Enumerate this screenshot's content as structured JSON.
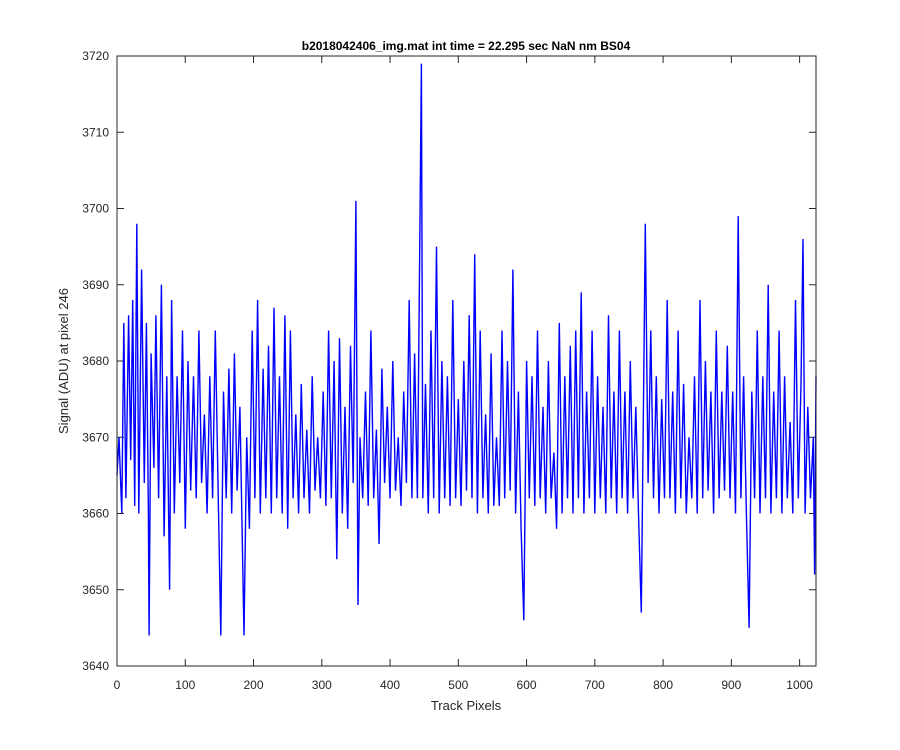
{
  "chart_data": {
    "type": "line",
    "title": "b2018042406_img.mat int time = 22.295 sec  NaN nm BS04",
    "xlabel": "Track Pixels",
    "ylabel": "Signal (ADU) at pixel 246",
    "xlim": [
      0,
      1024
    ],
    "ylim": [
      3640,
      3720
    ],
    "xticks": [
      0,
      100,
      200,
      300,
      400,
      500,
      600,
      700,
      800,
      900,
      1000
    ],
    "yticks": [
      3640,
      3650,
      3660,
      3670,
      3680,
      3690,
      3700,
      3710,
      3720
    ],
    "grid": false,
    "legend": "none",
    "line_color": "#0000ff",
    "series": [
      {
        "approximate_points": [
          [
            0,
            3665
          ],
          [
            3,
            3670
          ],
          [
            7,
            3660
          ],
          [
            10,
            3685
          ],
          [
            13,
            3662
          ],
          [
            17,
            3686
          ],
          [
            20,
            3667
          ],
          [
            23,
            3688
          ],
          [
            26,
            3661
          ],
          [
            29,
            3698
          ],
          [
            32,
            3660
          ],
          [
            36,
            3692
          ],
          [
            40,
            3664
          ],
          [
            43,
            3685
          ],
          [
            46,
            3660
          ],
          [
            47,
            3644
          ],
          [
            50,
            3681
          ],
          [
            54,
            3666
          ],
          [
            57,
            3686
          ],
          [
            61,
            3662
          ],
          [
            65,
            3690
          ],
          [
            69,
            3657
          ],
          [
            73,
            3678
          ],
          [
            77,
            3650
          ],
          [
            80,
            3688
          ],
          [
            84,
            3660
          ],
          [
            88,
            3678
          ],
          [
            92,
            3664
          ],
          [
            96,
            3684
          ],
          [
            100,
            3658
          ],
          [
            104,
            3680
          ],
          [
            108,
            3663
          ],
          [
            112,
            3678
          ],
          [
            116,
            3662
          ],
          [
            120,
            3684
          ],
          [
            124,
            3664
          ],
          [
            128,
            3673
          ],
          [
            132,
            3660
          ],
          [
            136,
            3678
          ],
          [
            140,
            3662
          ],
          [
            144,
            3684
          ],
          [
            148,
            3664
          ],
          [
            152,
            3644
          ],
          [
            156,
            3676
          ],
          [
            160,
            3662
          ],
          [
            164,
            3679
          ],
          [
            168,
            3660
          ],
          [
            172,
            3681
          ],
          [
            176,
            3663
          ],
          [
            180,
            3674
          ],
          [
            186,
            3644
          ],
          [
            190,
            3670
          ],
          [
            194,
            3658
          ],
          [
            198,
            3684
          ],
          [
            202,
            3662
          ],
          [
            206,
            3688
          ],
          [
            210,
            3660
          ],
          [
            214,
            3679
          ],
          [
            218,
            3662
          ],
          [
            222,
            3682
          ],
          [
            226,
            3660
          ],
          [
            230,
            3687
          ],
          [
            234,
            3662
          ],
          [
            238,
            3678
          ],
          [
            242,
            3660
          ],
          [
            246,
            3686
          ],
          [
            250,
            3658
          ],
          [
            254,
            3684
          ],
          [
            258,
            3662
          ],
          [
            262,
            3673
          ],
          [
            266,
            3660
          ],
          [
            270,
            3677
          ],
          [
            274,
            3662
          ],
          [
            278,
            3671
          ],
          [
            282,
            3660
          ],
          [
            286,
            3678
          ],
          [
            290,
            3663
          ],
          [
            294,
            3670
          ],
          [
            298,
            3662
          ],
          [
            302,
            3676
          ],
          [
            306,
            3661
          ],
          [
            310,
            3684
          ],
          [
            314,
            3662
          ],
          [
            318,
            3680
          ],
          [
            322,
            3654
          ],
          [
            326,
            3683
          ],
          [
            330,
            3660
          ],
          [
            334,
            3674
          ],
          [
            338,
            3658
          ],
          [
            342,
            3682
          ],
          [
            346,
            3664
          ],
          [
            350,
            3701
          ],
          [
            353,
            3648
          ],
          [
            356,
            3670
          ],
          [
            360,
            3662
          ],
          [
            364,
            3676
          ],
          [
            368,
            3661
          ],
          [
            372,
            3684
          ],
          [
            376,
            3662
          ],
          [
            380,
            3671
          ],
          [
            384,
            3656
          ],
          [
            388,
            3679
          ],
          [
            392,
            3664
          ],
          [
            396,
            3674
          ],
          [
            400,
            3662
          ],
          [
            404,
            3680
          ],
          [
            408,
            3663
          ],
          [
            412,
            3670
          ],
          [
            416,
            3661
          ],
          [
            420,
            3676
          ],
          [
            424,
            3664
          ],
          [
            428,
            3688
          ],
          [
            432,
            3662
          ],
          [
            436,
            3681
          ],
          [
            440,
            3662
          ],
          [
            444,
            3700
          ],
          [
            446,
            3719
          ],
          [
            448,
            3662
          ],
          [
            452,
            3677
          ],
          [
            456,
            3660
          ],
          [
            460,
            3684
          ],
          [
            464,
            3662
          ],
          [
            468,
            3695
          ],
          [
            472,
            3660
          ],
          [
            476,
            3680
          ],
          [
            480,
            3662
          ],
          [
            484,
            3678
          ],
          [
            488,
            3661
          ],
          [
            492,
            3688
          ],
          [
            496,
            3662
          ],
          [
            500,
            3675
          ],
          [
            504,
            3661
          ],
          [
            508,
            3680
          ],
          [
            512,
            3663
          ],
          [
            516,
            3686
          ],
          [
            520,
            3662
          ],
          [
            524,
            3694
          ],
          [
            528,
            3660
          ],
          [
            532,
            3684
          ],
          [
            536,
            3662
          ],
          [
            540,
            3673
          ],
          [
            544,
            3660
          ],
          [
            548,
            3681
          ],
          [
            552,
            3661
          ],
          [
            556,
            3670
          ],
          [
            560,
            3661
          ],
          [
            564,
            3684
          ],
          [
            568,
            3662
          ],
          [
            572,
            3680
          ],
          [
            576,
            3663
          ],
          [
            580,
            3692
          ],
          [
            584,
            3660
          ],
          [
            588,
            3676
          ],
          [
            592,
            3658
          ],
          [
            596,
            3646
          ],
          [
            600,
            3680
          ],
          [
            604,
            3662
          ],
          [
            608,
            3678
          ],
          [
            612,
            3661
          ],
          [
            616,
            3684
          ],
          [
            620,
            3662
          ],
          [
            624,
            3674
          ],
          [
            628,
            3660
          ],
          [
            632,
            3680
          ],
          [
            636,
            3662
          ],
          [
            640,
            3668
          ],
          [
            644,
            3658
          ],
          [
            648,
            3685
          ],
          [
            652,
            3660
          ],
          [
            656,
            3678
          ],
          [
            660,
            3662
          ],
          [
            664,
            3682
          ],
          [
            668,
            3660
          ],
          [
            672,
            3684
          ],
          [
            676,
            3662
          ],
          [
            680,
            3689
          ],
          [
            684,
            3660
          ],
          [
            688,
            3676
          ],
          [
            692,
            3662
          ],
          [
            696,
            3684
          ],
          [
            700,
            3660
          ],
          [
            704,
            3678
          ],
          [
            708,
            3662
          ],
          [
            712,
            3674
          ],
          [
            716,
            3660
          ],
          [
            720,
            3686
          ],
          [
            724,
            3662
          ],
          [
            728,
            3676
          ],
          [
            732,
            3660
          ],
          [
            736,
            3684
          ],
          [
            740,
            3662
          ],
          [
            744,
            3676
          ],
          [
            748,
            3660
          ],
          [
            752,
            3680
          ],
          [
            756,
            3662
          ],
          [
            760,
            3674
          ],
          [
            764,
            3660
          ],
          [
            768,
            3647
          ],
          [
            772,
            3681
          ],
          [
            774,
            3698
          ],
          [
            778,
            3664
          ],
          [
            782,
            3684
          ],
          [
            786,
            3662
          ],
          [
            790,
            3678
          ],
          [
            794,
            3660
          ],
          [
            798,
            3675
          ],
          [
            802,
            3662
          ],
          [
            806,
            3688
          ],
          [
            810,
            3662
          ],
          [
            814,
            3676
          ],
          [
            818,
            3660
          ],
          [
            822,
            3684
          ],
          [
            826,
            3662
          ],
          [
            830,
            3677
          ],
          [
            834,
            3660
          ],
          [
            838,
            3670
          ],
          [
            842,
            3662
          ],
          [
            846,
            3678
          ],
          [
            850,
            3660
          ],
          [
            854,
            3688
          ],
          [
            858,
            3662
          ],
          [
            862,
            3680
          ],
          [
            866,
            3663
          ],
          [
            870,
            3676
          ],
          [
            874,
            3660
          ],
          [
            878,
            3684
          ],
          [
            882,
            3662
          ],
          [
            886,
            3676
          ],
          [
            890,
            3663
          ],
          [
            894,
            3682
          ],
          [
            898,
            3662
          ],
          [
            902,
            3676
          ],
          [
            906,
            3660
          ],
          [
            910,
            3699
          ],
          [
            914,
            3662
          ],
          [
            918,
            3678
          ],
          [
            922,
            3660
          ],
          [
            926,
            3645
          ],
          [
            930,
            3676
          ],
          [
            934,
            3662
          ],
          [
            938,
            3684
          ],
          [
            942,
            3660
          ],
          [
            946,
            3678
          ],
          [
            950,
            3662
          ],
          [
            954,
            3690
          ],
          [
            958,
            3660
          ],
          [
            962,
            3676
          ],
          [
            966,
            3662
          ],
          [
            970,
            3684
          ],
          [
            974,
            3660
          ],
          [
            978,
            3678
          ],
          [
            982,
            3662
          ],
          [
            986,
            3672
          ],
          [
            990,
            3660
          ],
          [
            994,
            3688
          ],
          [
            998,
            3662
          ],
          [
            1002,
            3677
          ],
          [
            1005,
            3696
          ],
          [
            1008,
            3660
          ],
          [
            1012,
            3674
          ],
          [
            1016,
            3662
          ],
          [
            1020,
            3670
          ],
          [
            1022,
            3652
          ],
          [
            1024,
            3678
          ]
        ]
      }
    ]
  }
}
